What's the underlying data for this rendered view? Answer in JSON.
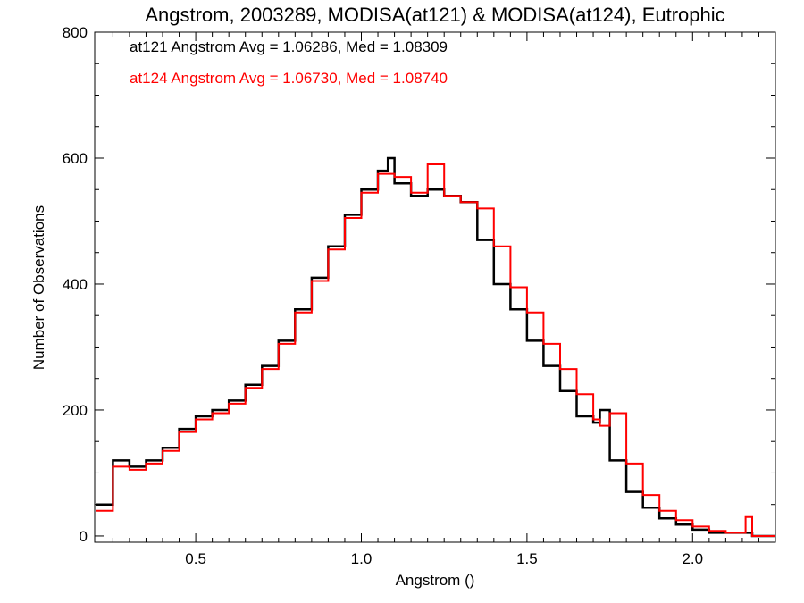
{
  "chart_data": {
    "type": "line",
    "style": "step-histogram",
    "title": "Angstrom, 2003289, MODISA(at121) & MODISA(at124), Eutrophic",
    "xlabel": "Angstrom ()",
    "ylabel": "Number of Observations",
    "xlim": [
      0.195,
      2.25
    ],
    "ylim": [
      -10,
      800
    ],
    "xticks": [
      0.5,
      1.0,
      1.5,
      2.0
    ],
    "xtick_labels": [
      "0.5",
      "1.0",
      "1.5",
      "2.0"
    ],
    "yticks": [
      0,
      200,
      400,
      600,
      800
    ],
    "ytick_labels": [
      "0",
      "200",
      "400",
      "600",
      "800"
    ],
    "grid": false,
    "legend_position": "top-left",
    "annotations": [
      {
        "text": "at121 Angstrom Avg = 1.06286, Med = 1.08309",
        "color": "#000000"
      },
      {
        "text": "at124 Angstrom Avg = 1.06730, Med = 1.08740",
        "color": "#ff0000"
      }
    ],
    "series": [
      {
        "color": "#000000",
        "x": [
          0.2,
          0.25,
          0.3,
          0.35,
          0.4,
          0.45,
          0.5,
          0.55,
          0.6,
          0.65,
          0.7,
          0.75,
          0.8,
          0.85,
          0.9,
          0.95,
          1.0,
          1.05,
          1.08,
          1.1,
          1.15,
          1.2,
          1.25,
          1.3,
          1.35,
          1.4,
          1.45,
          1.5,
          1.55,
          1.6,
          1.65,
          1.7,
          1.72,
          1.75,
          1.8,
          1.85,
          1.9,
          1.95,
          2.0,
          2.05,
          2.1,
          2.15,
          2.18,
          2.25
        ],
        "y": [
          50,
          120,
          110,
          120,
          140,
          170,
          190,
          200,
          215,
          240,
          270,
          310,
          360,
          410,
          460,
          510,
          550,
          580,
          600,
          560,
          540,
          550,
          540,
          530,
          470,
          400,
          360,
          310,
          270,
          230,
          190,
          180,
          200,
          120,
          70,
          45,
          28,
          18,
          10,
          5,
          5,
          5,
          0,
          0
        ]
      },
      {
        "color": "#ff0000",
        "x": [
          0.2,
          0.25,
          0.3,
          0.35,
          0.4,
          0.45,
          0.5,
          0.55,
          0.6,
          0.65,
          0.7,
          0.75,
          0.8,
          0.85,
          0.9,
          0.95,
          1.0,
          1.05,
          1.1,
          1.15,
          1.2,
          1.25,
          1.3,
          1.35,
          1.4,
          1.45,
          1.5,
          1.55,
          1.6,
          1.65,
          1.7,
          1.72,
          1.75,
          1.8,
          1.85,
          1.9,
          1.95,
          2.0,
          2.05,
          2.1,
          2.15,
          2.16,
          2.18,
          2.25
        ],
        "y": [
          40,
          110,
          105,
          115,
          135,
          165,
          185,
          195,
          210,
          235,
          265,
          305,
          355,
          405,
          455,
          505,
          545,
          575,
          570,
          545,
          590,
          540,
          530,
          520,
          460,
          395,
          355,
          305,
          265,
          225,
          185,
          175,
          195,
          115,
          65,
          40,
          25,
          15,
          8,
          5,
          5,
          30,
          0,
          0
        ]
      }
    ]
  }
}
